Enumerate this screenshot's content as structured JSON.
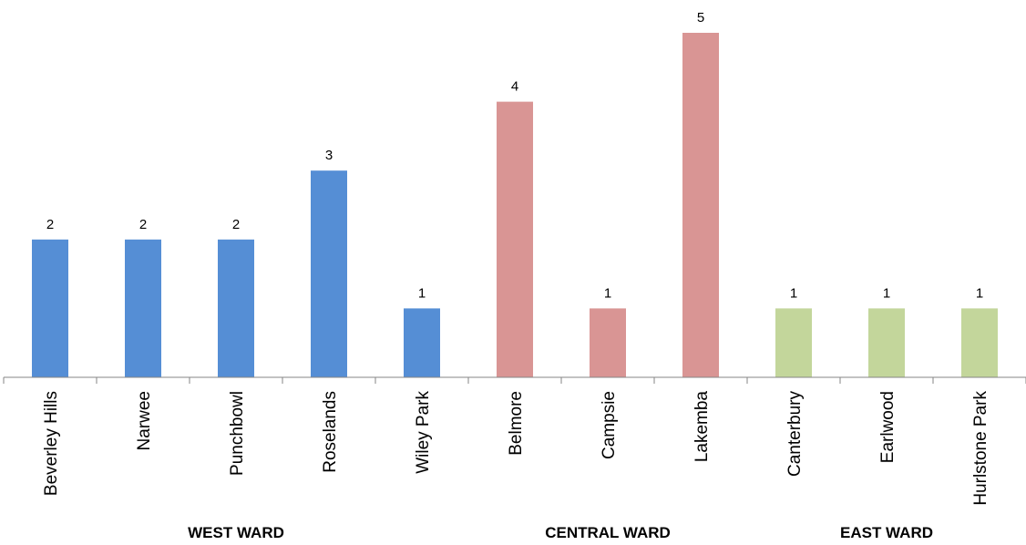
{
  "chart_data": {
    "type": "bar",
    "title": "",
    "xlabel": "",
    "ylabel": "",
    "ylim": [
      0,
      5
    ],
    "grid": false,
    "legend": "none",
    "categories": [
      "Beverley Hills",
      "Narwee",
      "Punchbowl",
      "Roselands",
      "Wiley Park",
      "Belmore",
      "Campsie",
      "Lakemba",
      "Canterbury",
      "Earlwood",
      "Hurlstone Park"
    ],
    "values": [
      2,
      2,
      2,
      3,
      1,
      4,
      1,
      5,
      1,
      1,
      1
    ],
    "bar_groups": [
      0,
      0,
      0,
      0,
      0,
      1,
      1,
      1,
      2,
      2,
      2
    ],
    "groups": [
      {
        "label": "WEST WARD",
        "color": "#558ED5"
      },
      {
        "label": "CENTRAL WARD",
        "color": "#D99594"
      },
      {
        "label": "EAST WARD",
        "color": "#C3D69B"
      }
    ]
  }
}
